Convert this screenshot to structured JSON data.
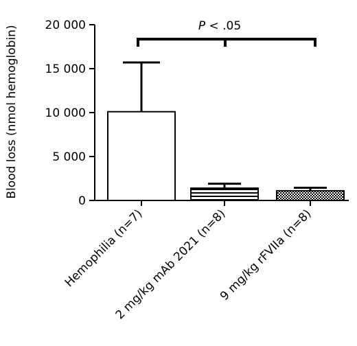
{
  "chart_data": {
    "type": "bar",
    "title": "",
    "xlabel": "",
    "ylabel": "Blood loss (nmol hemoglobin)",
    "ylim": [
      0,
      20000
    ],
    "yticks": [
      0,
      5000,
      10000,
      15000,
      20000
    ],
    "ytick_labels": [
      "0",
      "5 000",
      "10 000",
      "15 000",
      "20 000"
    ],
    "categories": [
      "Hemophilia (n=7)",
      "2 mg/kg mAb 2021 (n=8)",
      "9 mg/kg rFVIIa (n=8)"
    ],
    "values": [
      10100,
      1400,
      1100
    ],
    "error_upper": [
      15700,
      1900,
      1450
    ],
    "fills": [
      "none",
      "horizontal-stripes",
      "checker"
    ],
    "annotation": {
      "p_italic": "P",
      "text": " < .05",
      "comparison": "Hemophilia (n=7) vs 2 mg/kg mAb 2021 (n=8) and 9 mg/kg rFVIIa (n=8)"
    },
    "grid": false,
    "legend": "none"
  }
}
